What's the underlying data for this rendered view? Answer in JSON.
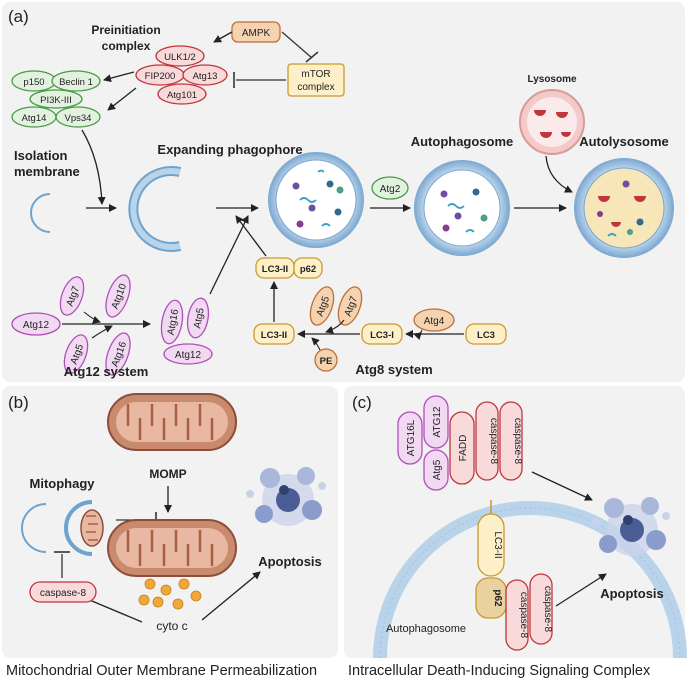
{
  "panel_a": {
    "label": "(a)",
    "ampk": "AMPK",
    "mtor_line1": "mTOR",
    "mtor_line2": "complex",
    "preinit_line1": "Preinitiation",
    "preinit_line2": "complex",
    "ulk": "ULK1/2",
    "fip200": "FIP200",
    "atg13": "Atg13",
    "atg101": "Atg101",
    "p150": "p150",
    "beclin": "Beclin 1",
    "pi3k": "PI3K-III",
    "atg14": "Atg14",
    "vps34": "Vps34",
    "isolation_line1": "Isolation",
    "isolation_line2": "membrane",
    "expanding": "Expanding phagophore",
    "atg2": "Atg2",
    "autophagosome": "Autophagosome",
    "lysosome": "Lysosome",
    "autolysosome": "Autolysosome",
    "atg12_system": "Atg12 system",
    "atg8_system": "Atg8 system",
    "atg7": "Atg7",
    "atg10": "Atg10",
    "atg12": "Atg12",
    "atg5": "Atg5",
    "atg16": "Atg16",
    "lc3ii": "LC3-II",
    "p62": "p62",
    "lc3i": "LC3-I",
    "lc3": "LC3",
    "atg4": "Atg4",
    "pe": "PE"
  },
  "panel_b": {
    "label": "(b)",
    "mitophagy": "Mitophagy",
    "momp": "MOMP",
    "apoptosis": "Apoptosis",
    "caspase8": "caspase-8",
    "cytoc": "cyto c",
    "footer": "Mitochondrial Outer Membrane Permeabilization"
  },
  "panel_c": {
    "label": "(c)",
    "atg16l": "ATG16L",
    "atg12": "ATG12",
    "atg5": "Atg5",
    "fadd": "FADD",
    "caspase8": "caspase-8",
    "lc3ii": "LC3-II",
    "p62": "p62",
    "autophagosome": "Autophagosome",
    "apoptosis": "Apoptosis",
    "footer": "Intracellular Death-Inducing Signaling Complex"
  },
  "colors": {
    "purple_fill": "#f1d9f2",
    "purple_stroke": "#b04fb8",
    "red_fill": "#f8dada",
    "red_stroke": "#c0363c",
    "green_fill": "#e3f2e0",
    "green_stroke": "#4a9a46",
    "yellow_fill": "#fdf0c8",
    "yellow_stroke": "#c99a2e",
    "orange_fill": "#f5d2b0",
    "orange_stroke": "#b8703a",
    "vesicle_blue": "#9ec2dd",
    "panel_bg": "#f2f2f2"
  }
}
